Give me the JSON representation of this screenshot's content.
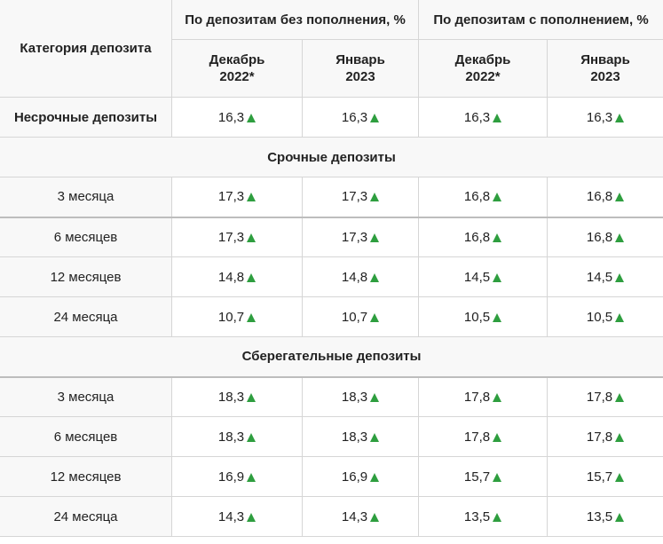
{
  "header": {
    "category_label": "Категория депозита",
    "group_no_topup": "По депозитам без пополнения, %",
    "group_with_topup": "По депозитам с пополнением, %",
    "periods": [
      {
        "line1": "Декабрь",
        "line2": "2022*"
      },
      {
        "line1": "Январь",
        "line2": "2023"
      },
      {
        "line1": "Декабрь",
        "line2": "2022*"
      },
      {
        "line1": "Январь",
        "line2": "2023"
      }
    ]
  },
  "demand_row": {
    "label": "Несрочные депозиты",
    "values": [
      "16,3",
      "16,3",
      "16,3",
      "16,3"
    ]
  },
  "sections": [
    {
      "title": "Срочные депозиты",
      "rows": [
        {
          "label": "3 месяца",
          "values": [
            "17,3",
            "17,3",
            "16,8",
            "16,8"
          ]
        },
        {
          "label": "6 месяцев",
          "values": [
            "17,3",
            "17,3",
            "16,8",
            "16,8"
          ]
        },
        {
          "label": "12 месяцев",
          "values": [
            "14,8",
            "14,8",
            "14,5",
            "14,5"
          ]
        },
        {
          "label": "24 месяца",
          "values": [
            "10,7",
            "10,7",
            "10,5",
            "10,5"
          ]
        }
      ]
    },
    {
      "title": "Сберегательные депозиты",
      "rows": [
        {
          "label": "3 месяца",
          "values": [
            "18,3",
            "18,3",
            "17,8",
            "17,8"
          ]
        },
        {
          "label": "6 месяцев",
          "values": [
            "18,3",
            "18,3",
            "17,8",
            "17,8"
          ]
        },
        {
          "label": "12 месяцев",
          "values": [
            "16,9",
            "16,9",
            "15,7",
            "15,7"
          ]
        },
        {
          "label": "24 месяца",
          "values": [
            "14,3",
            "14,3",
            "13,5",
            "13,5"
          ]
        }
      ]
    }
  ],
  "colors": {
    "trend_up": "#2e9e3f",
    "header_bg": "#f8f8f8",
    "border": "#d6d6d6"
  },
  "icons": {
    "trend": "triangle-up-icon"
  }
}
